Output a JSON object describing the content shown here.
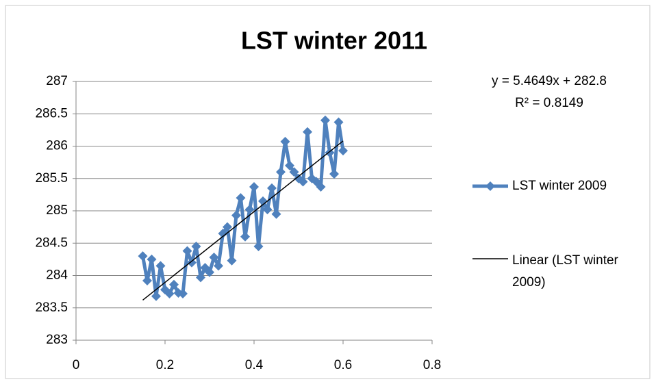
{
  "chart_data": {
    "type": "line",
    "title": "LST winter 2011",
    "annotations": [
      "y = 5.4649x + 282.8",
      "R² = 0.8149"
    ],
    "xlim": [
      0,
      0.8
    ],
    "xticks": [
      0,
      0.2,
      0.4,
      0.6,
      0.8
    ],
    "ylim": [
      283,
      287
    ],
    "yticks": [
      283,
      283.5,
      284,
      284.5,
      285,
      285.5,
      286,
      286.5,
      287
    ],
    "grid": true,
    "legend": "right",
    "series": [
      {
        "name": "LST winter 2009",
        "color": "#4f81bd",
        "marker": "diamond",
        "x": [
          0.15,
          0.16,
          0.17,
          0.18,
          0.19,
          0.2,
          0.21,
          0.22,
          0.23,
          0.24,
          0.25,
          0.26,
          0.27,
          0.28,
          0.29,
          0.3,
          0.31,
          0.32,
          0.33,
          0.34,
          0.35,
          0.36,
          0.37,
          0.38,
          0.39,
          0.4,
          0.41,
          0.42,
          0.43,
          0.44,
          0.45,
          0.46,
          0.47,
          0.48,
          0.49,
          0.5,
          0.51,
          0.52,
          0.53,
          0.54,
          0.55,
          0.56,
          0.57,
          0.58,
          0.59,
          0.6
        ],
        "values": [
          284.3,
          283.92,
          284.25,
          283.68,
          284.15,
          283.78,
          283.72,
          283.86,
          283.73,
          283.72,
          284.38,
          284.2,
          284.45,
          283.97,
          284.12,
          284.05,
          284.28,
          284.15,
          284.65,
          284.75,
          284.23,
          284.93,
          285.2,
          284.6,
          285.02,
          285.37,
          284.45,
          285.15,
          285.02,
          285.35,
          284.95,
          285.6,
          286.07,
          285.7,
          285.6,
          285.5,
          285.45,
          286.22,
          285.5,
          285.45,
          285.37,
          286.4,
          285.9,
          285.57,
          286.37,
          285.93
        ]
      },
      {
        "name": "Linear (LST winter 2009)",
        "color": "#000000",
        "x": [
          0.15,
          0.6
        ],
        "values": [
          283.62,
          286.08
        ]
      }
    ]
  }
}
